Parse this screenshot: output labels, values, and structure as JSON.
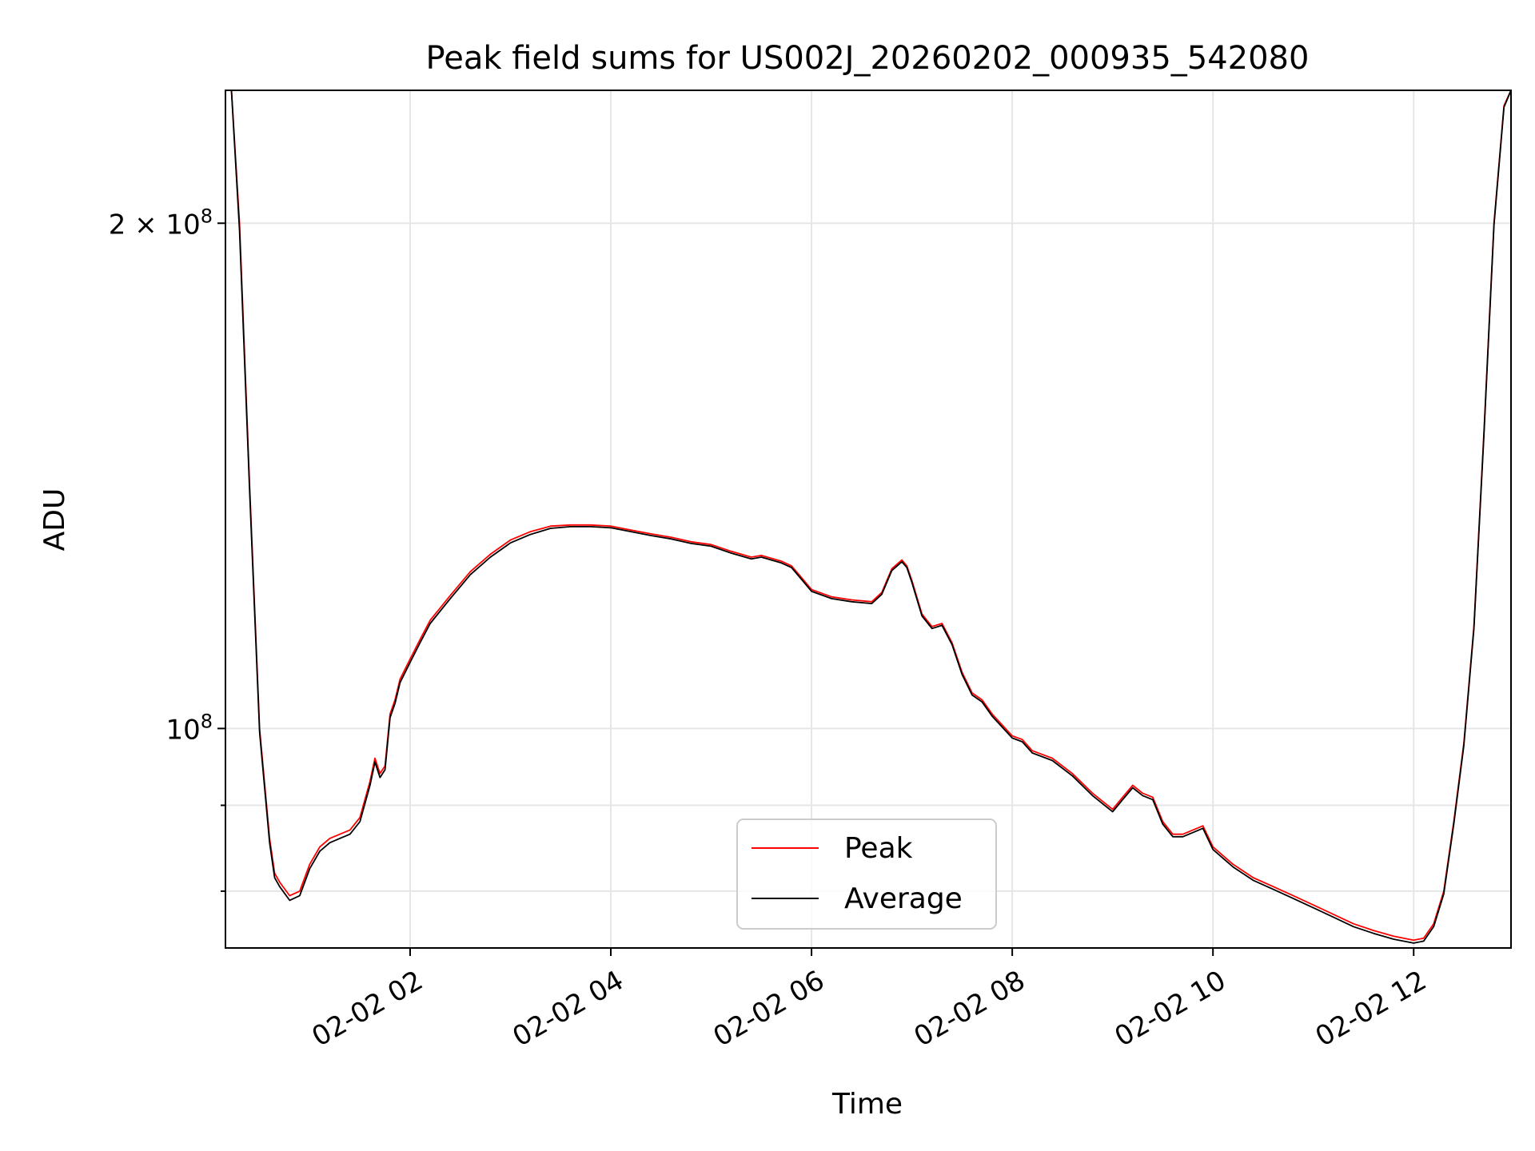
{
  "chart_data": {
    "type": "line",
    "title": "Peak field sums for US002J_20260202_000935_542080",
    "xlabel": "Time",
    "ylabel": "ADU",
    "yscale": "log",
    "xlim_hours": [
      0.16,
      12.97
    ],
    "ylim": [
      74000000,
      240000000
    ],
    "grid": true,
    "legend_loc": "lower center",
    "x_ticks": [
      {
        "hour": 2,
        "label": "02-02 02"
      },
      {
        "hour": 4,
        "label": "02-02 04"
      },
      {
        "hour": 6,
        "label": "02-02 06"
      },
      {
        "hour": 8,
        "label": "02-02 08"
      },
      {
        "hour": 10,
        "label": "02-02 10"
      },
      {
        "hour": 12,
        "label": "02-02 12"
      }
    ],
    "y_major_ticks": [
      {
        "value": 100000000,
        "label_base": "10",
        "label_exp": "8"
      },
      {
        "value": 200000000,
        "label_base": "2 × 10",
        "label_exp": "8"
      }
    ],
    "y_minor_ticks": [
      80000000,
      90000000
    ],
    "x_hours": [
      0.22,
      0.3,
      0.4,
      0.5,
      0.6,
      0.65,
      0.7,
      0.8,
      0.9,
      1.0,
      1.1,
      1.2,
      1.3,
      1.4,
      1.5,
      1.6,
      1.65,
      1.7,
      1.75,
      1.8,
      1.85,
      1.9,
      2.0,
      2.1,
      2.2,
      2.4,
      2.6,
      2.8,
      3.0,
      3.2,
      3.4,
      3.6,
      3.8,
      4.0,
      4.2,
      4.4,
      4.6,
      4.8,
      5.0,
      5.2,
      5.4,
      5.5,
      5.7,
      5.8,
      5.9,
      6.0,
      6.2,
      6.4,
      6.6,
      6.7,
      6.8,
      6.9,
      6.95,
      7.0,
      7.1,
      7.2,
      7.3,
      7.4,
      7.5,
      7.6,
      7.7,
      7.8,
      8.0,
      8.1,
      8.2,
      8.4,
      8.6,
      8.8,
      9.0,
      9.1,
      9.2,
      9.3,
      9.4,
      9.5,
      9.6,
      9.7,
      9.8,
      9.9,
      10.0,
      10.1,
      10.2,
      10.4,
      10.6,
      10.8,
      11.0,
      11.2,
      11.4,
      11.6,
      11.8,
      12.0,
      12.1,
      12.2,
      12.3,
      12.4,
      12.5,
      12.6,
      12.7,
      12.8,
      12.9,
      12.97
    ],
    "series": [
      {
        "name": "Peak",
        "color": "#ff0000",
        "values": [
          240000000,
          200000000,
          140000000,
          100000000,
          86000000,
          82000000,
          81000000,
          79500000,
          80000000,
          83000000,
          85000000,
          86000000,
          86500000,
          87000000,
          88500000,
          93000000,
          96000000,
          94000000,
          95000000,
          102000000,
          104000000,
          107000000,
          110000000,
          113000000,
          116000000,
          120000000,
          124000000,
          127000000,
          129500000,
          131000000,
          132000000,
          132200000,
          132200000,
          132000000,
          131300000,
          130600000,
          130000000,
          129200000,
          128700000,
          127500000,
          126500000,
          126800000,
          125800000,
          125000000,
          123000000,
          121000000,
          119800000,
          119300000,
          119000000,
          120500000,
          124500000,
          126000000,
          125000000,
          122500000,
          117000000,
          115000000,
          115500000,
          112500000,
          108000000,
          105000000,
          104000000,
          102000000,
          99000000,
          98500000,
          97000000,
          96000000,
          94000000,
          91500000,
          89500000,
          91000000,
          92500000,
          91500000,
          91000000,
          88000000,
          86500000,
          86500000,
          87000000,
          87500000,
          85000000,
          84000000,
          83000000,
          81500000,
          80500000,
          79500000,
          78500000,
          77500000,
          76500000,
          75800000,
          75200000,
          74800000,
          75000000,
          76500000,
          80000000,
          88000000,
          98000000,
          115000000,
          150000000,
          200000000,
          235000000,
          240000000
        ]
      },
      {
        "name": "Average",
        "color": "#000000",
        "values": [
          240000000,
          198000000,
          139000000,
          99500000,
          85500000,
          81500000,
          80500000,
          79000000,
          79500000,
          82500000,
          84500000,
          85500000,
          86000000,
          86500000,
          88000000,
          92500000,
          95500000,
          93500000,
          94500000,
          101500000,
          103500000,
          106500000,
          109500000,
          112500000,
          115500000,
          119500000,
          123500000,
          126500000,
          129000000,
          130500000,
          131600000,
          131900000,
          131900000,
          131700000,
          131000000,
          130300000,
          129700000,
          128900000,
          128400000,
          127200000,
          126200000,
          126500000,
          125500000,
          124700000,
          122700000,
          120700000,
          119500000,
          119000000,
          118700000,
          120200000,
          124200000,
          125700000,
          124700000,
          122200000,
          116700000,
          114700000,
          115200000,
          112200000,
          107700000,
          104700000,
          103700000,
          101700000,
          98700000,
          98200000,
          96700000,
          95700000,
          93700000,
          91200000,
          89200000,
          90700000,
          92200000,
          91200000,
          90700000,
          87700000,
          86200000,
          86200000,
          86700000,
          87200000,
          84700000,
          83700000,
          82700000,
          81200000,
          80200000,
          79200000,
          78200000,
          77200000,
          76200000,
          75500000,
          74900000,
          74500000,
          74700000,
          76200000,
          79700000,
          87700000,
          97700000,
          114700000,
          149500000,
          199500000,
          234500000,
          240000000
        ]
      }
    ]
  }
}
